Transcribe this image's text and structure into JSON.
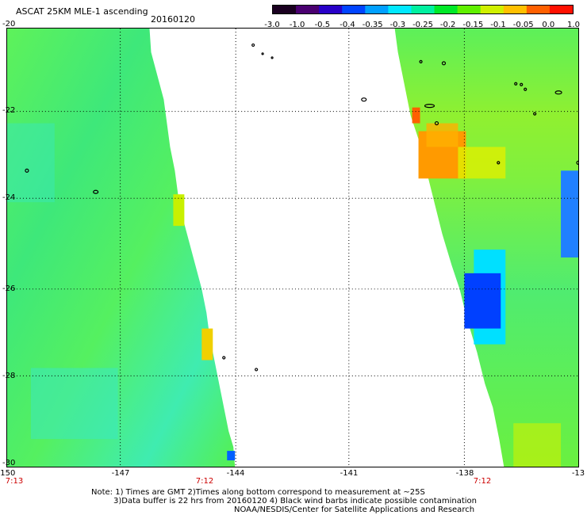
{
  "header": {
    "title": "ASCAT 25KM MLE-1 ascending",
    "date": "20160120"
  },
  "colorbar": {
    "labels": [
      "-3.0",
      "-1.0",
      "-0.5",
      "-0.4",
      "-0.35",
      "-0.3",
      "-0.25",
      "-0.2",
      "-0.15",
      "-0.1",
      "-0.05",
      "0.0",
      "1.0"
    ],
    "colors": [
      "#1a0020",
      "#4a0070",
      "#2800c8",
      "#0044ff",
      "#00a0ff",
      "#00e8ff",
      "#00f0a0",
      "#00e828",
      "#60f000",
      "#d0f000",
      "#ffc000",
      "#ff6000",
      "#ff1000"
    ]
  },
  "axes": {
    "lon_labels": [
      "-150",
      "-147",
      "-144",
      "-141",
      "-138",
      "-13"
    ],
    "lat_labels": [
      "-20",
      "-22",
      "-24",
      "-26",
      "-28",
      "-30"
    ],
    "time_labels": [
      "7:13",
      "7:12",
      "7:12"
    ]
  },
  "notes": {
    "line1": "Note: 1) Times are GMT 2)Times along bottom correspond to measurement at ~25S",
    "line2": "3)Data buffer is 22 hrs from 20160120 4) Black wind barbs indicate possible contamination",
    "line3": "NOAA/NESDIS/Center for Satellite Applications and Research"
  }
}
